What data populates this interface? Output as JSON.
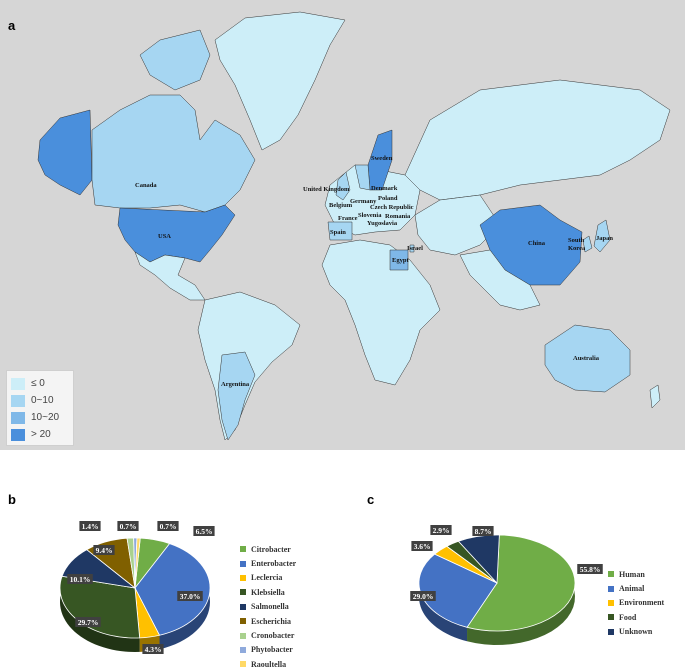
{
  "panels": {
    "a": "a",
    "b": "b",
    "c": "c"
  },
  "map": {
    "legend": [
      {
        "label": "≤ 0",
        "color": "#cdeef8"
      },
      {
        "label": "0~10",
        "color": "#a6d6f2"
      },
      {
        "label": "10~20",
        "color": "#7fb8e8"
      },
      {
        "label": "> 20",
        "color": "#4a8fdc"
      }
    ],
    "colors": {
      "ocean": "#d6d6d6",
      "none": "#cdeef8",
      "low": "#a6d6f2",
      "mid": "#7fb8e8",
      "high": "#4a8fdc",
      "border": "#333333"
    },
    "labels": {
      "canada": "Canada",
      "usa": "USA",
      "argentina": "Argentina",
      "sweden": "Sweden",
      "uk": "United Kingdom",
      "denmark": "Denmark",
      "poland": "Poland",
      "germany": "Germany",
      "belgium": "Belgium",
      "czech": "Czech Republic",
      "france": "France",
      "slovenia": "Slovenia",
      "romania": "Romania",
      "yugoslavia": "Yugoslavia",
      "spain": "Spain",
      "israel": "Israel",
      "egypt": "Egypt",
      "china": "China",
      "south_korea_1": "South",
      "south_korea_2": "Korea",
      "japan": "Japan",
      "australia": "Australia"
    }
  },
  "chart_data": [
    {
      "type": "pie",
      "panel": "b",
      "categories": [
        "Citrobacter",
        "Enterobacter",
        "Leclercia",
        "Klebsiella",
        "Salmonella",
        "Escherichia",
        "Cronobacter",
        "Phytobacter",
        "Raoultella"
      ],
      "values": [
        6.5,
        37.0,
        4.3,
        29.7,
        10.1,
        9.4,
        1.4,
        0.7,
        0.7
      ],
      "labels": [
        "6.5%",
        "37.0%",
        "4.3%",
        "29.7%",
        "10.1%",
        "9.4%",
        "1.4%",
        "0.7%",
        "0.7%"
      ],
      "colors": [
        "#70ad47",
        "#4472c4",
        "#ffc000",
        "#375623",
        "#1f3864",
        "#806000",
        "#a9d18e",
        "#8faadc",
        "#ffd966"
      ]
    },
    {
      "type": "pie",
      "panel": "c",
      "categories": [
        "Human",
        "Animal",
        "Environment",
        "Food",
        "Unknown"
      ],
      "values": [
        55.8,
        29.0,
        3.6,
        2.9,
        8.7
      ],
      "labels": [
        "55.8%",
        "29.0%",
        "3.6%",
        "2.9%",
        "8.7%"
      ],
      "colors": [
        "#70ad47",
        "#4472c4",
        "#ffc000",
        "#375623",
        "#1f3864"
      ]
    }
  ]
}
